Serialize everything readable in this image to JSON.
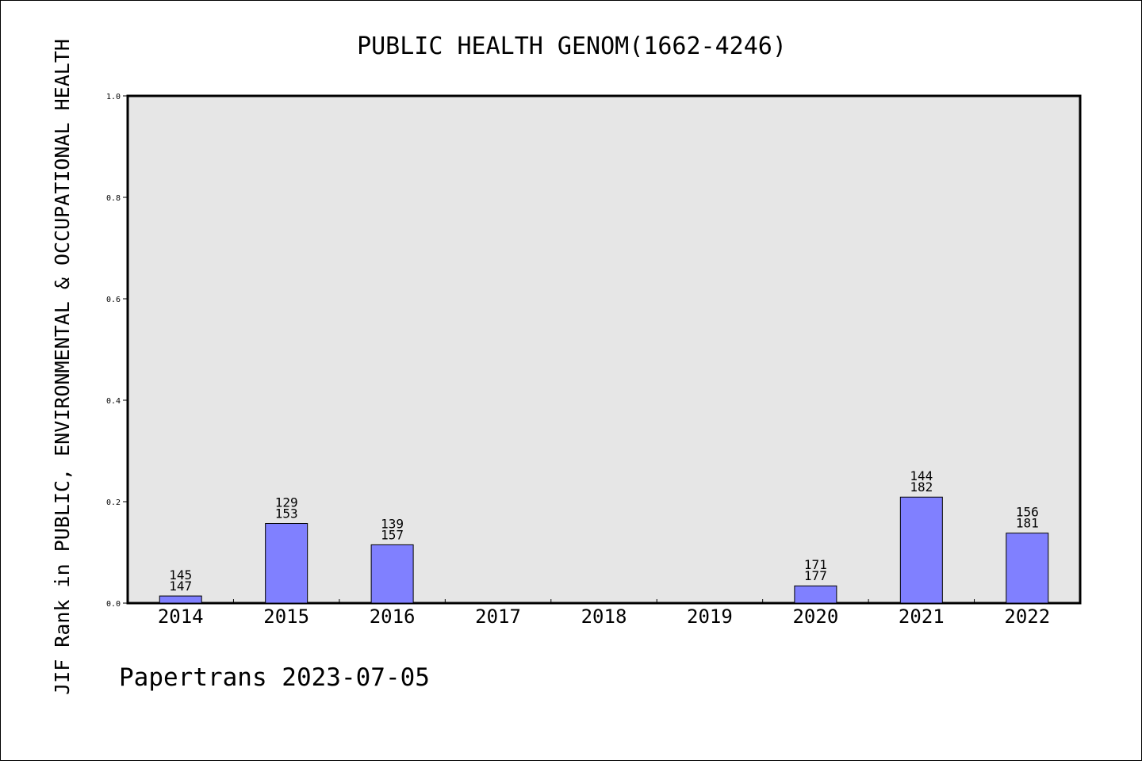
{
  "chart_data": {
    "type": "bar",
    "title": "PUBLIC HEALTH GENOM(1662-4246)",
    "xlabel": "",
    "ylabel": "JIF Rank in PUBLIC, ENVIRONMENTAL & OCCUPATIONAL HEALTH",
    "ylim": [
      0.0,
      1.0
    ],
    "yticks": [
      "0.0",
      "0.2",
      "0.4",
      "0.6",
      "0.8",
      "1.0"
    ],
    "categories": [
      "2014",
      "2015",
      "2016",
      "2017",
      "2018",
      "2019",
      "2020",
      "2021",
      "2022"
    ],
    "values": [
      0.014,
      0.157,
      0.115,
      null,
      null,
      null,
      0.034,
      0.209,
      0.138
    ],
    "rank": [
      "145",
      "129",
      "139",
      null,
      null,
      null,
      "171",
      "144",
      "156"
    ],
    "total": [
      "147",
      "153",
      "157",
      null,
      null,
      null,
      "177",
      "182",
      "181"
    ],
    "grid": false,
    "colors": {
      "bar": "#8080ff",
      "plot_background": "#e6e6e6",
      "axis": "#000000"
    }
  },
  "footer": "Papertrans 2023-07-05"
}
